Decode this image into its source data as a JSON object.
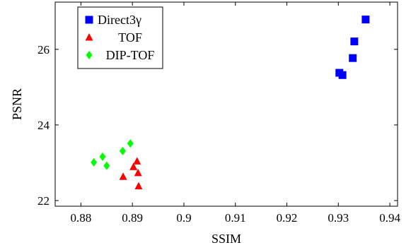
{
  "chart_data": {
    "type": "scatter",
    "xlabel": "SSIM",
    "ylabel": "PSNR",
    "xlim": [
      0.875,
      0.9415
    ],
    "ylim": [
      21.85,
      27.25
    ],
    "xticks": [
      0.88,
      0.89,
      0.9,
      0.91,
      0.92,
      0.93,
      0.94
    ],
    "xtick_labels": [
      "0.88",
      "0.89",
      "0.9",
      "0.91",
      "0.92",
      "0.93",
      "0.94"
    ],
    "yticks": [
      22,
      24,
      26
    ],
    "ytick_labels": [
      "22",
      "24",
      "26"
    ],
    "grid": false,
    "legend_position": "top-left",
    "series": [
      {
        "name": "Direct3γ",
        "marker": "square",
        "color": "#0000ff",
        "points": [
          {
            "x": 0.9302,
            "y": 25.38
          },
          {
            "x": 0.9308,
            "y": 25.32
          },
          {
            "x": 0.9328,
            "y": 25.77
          },
          {
            "x": 0.9331,
            "y": 26.21
          },
          {
            "x": 0.9353,
            "y": 26.79
          }
        ]
      },
      {
        "name": "TOF",
        "marker": "triangle",
        "color": "#ff0000",
        "points": [
          {
            "x": 0.8882,
            "y": 22.63
          },
          {
            "x": 0.8902,
            "y": 22.89
          },
          {
            "x": 0.8909,
            "y": 23.04
          },
          {
            "x": 0.8911,
            "y": 22.73
          },
          {
            "x": 0.8912,
            "y": 22.38
          }
        ]
      },
      {
        "name": "DIP-TOF",
        "marker": "diamond",
        "color": "#00ff00",
        "points": [
          {
            "x": 0.8825,
            "y": 23.01
          },
          {
            "x": 0.8842,
            "y": 23.16
          },
          {
            "x": 0.885,
            "y": 22.92
          },
          {
            "x": 0.8881,
            "y": 23.31
          },
          {
            "x": 0.8896,
            "y": 23.51
          }
        ]
      }
    ]
  }
}
